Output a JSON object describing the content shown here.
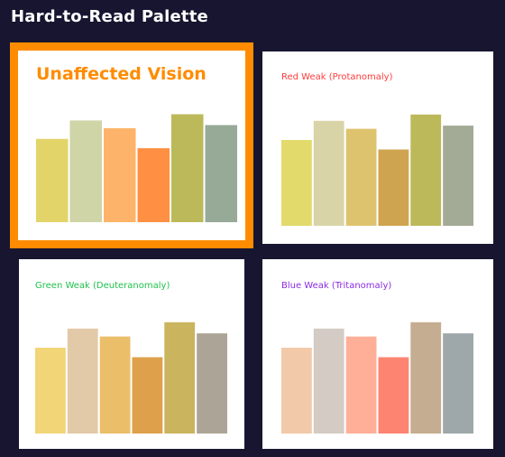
{
  "page": {
    "title": "Hard-to-Read Palette"
  },
  "chart_data": [
    {
      "type": "bar",
      "title": "Unaffected Vision",
      "title_color": "#ff8c00",
      "selected": true,
      "values": [
        54,
        66,
        61,
        48,
        70,
        63
      ],
      "colors": [
        "#e3d46a",
        "#d0d5a8",
        "#fdb46a",
        "#ff8f42",
        "#bcb95a",
        "#97aa97"
      ],
      "ylim": [
        0,
        75
      ]
    },
    {
      "type": "bar",
      "title": "Red Weak (Protanomaly)",
      "title_color": "#ff3b3b",
      "selected": false,
      "values": [
        54,
        66,
        61,
        48,
        70,
        63
      ],
      "colors": [
        "#e2db6b",
        "#d8d4a7",
        "#dec36e",
        "#cfa450",
        "#bcb95a",
        "#a3aa95"
      ],
      "ylim": [
        0,
        75
      ]
    },
    {
      "type": "bar",
      "title": "Green Weak (Deuteranomaly)",
      "title_color": "#1fc24b",
      "selected": false,
      "values": [
        54,
        66,
        61,
        48,
        70,
        63
      ],
      "colors": [
        "#f1d576",
        "#e2c9a8",
        "#ebbe6a",
        "#dea04a",
        "#cab45e",
        "#aca496"
      ],
      "ylim": [
        0,
        75
      ]
    },
    {
      "type": "bar",
      "title": "Blue Weak (Tritanomaly)",
      "title_color": "#8a2be2",
      "selected": false,
      "values": [
        54,
        66,
        61,
        48,
        70,
        63
      ],
      "colors": [
        "#f2c9a9",
        "#d4ccc4",
        "#ffaf98",
        "#fe8472",
        "#c4ad90",
        "#9ea7a9"
      ],
      "ylim": [
        0,
        75
      ]
    }
  ]
}
